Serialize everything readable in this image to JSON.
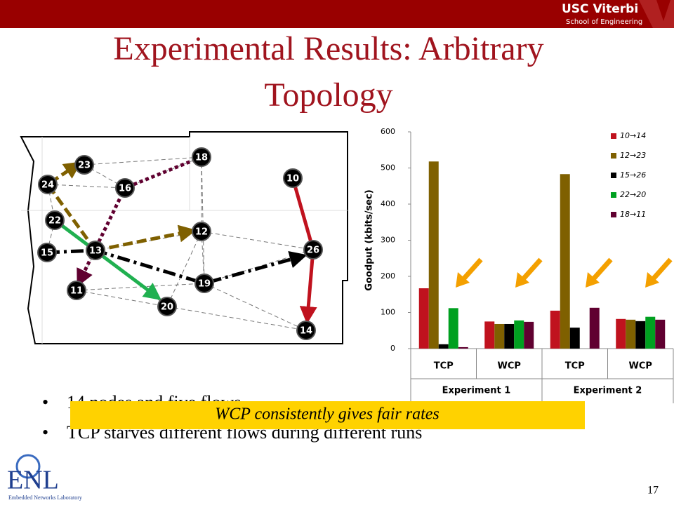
{
  "slide": {
    "title_lines": [
      "Experimental Results: Arbitrary",
      "Topology"
    ],
    "bullets": [
      "14 nodes and five flows",
      "TCP starves different flows during different runs"
    ],
    "callout": "WCP consistently gives fair rates",
    "page_number": "17",
    "header_logo": [
      "USC Viterbi",
      "School of Engineering"
    ],
    "footer_logo": [
      "ENL",
      "Embedded Networks Laboratory"
    ],
    "topology_nodes": [
      "23",
      "24",
      "16",
      "18",
      "10",
      "22",
      "12",
      "15",
      "13",
      "26",
      "11",
      "19",
      "20",
      "14"
    ]
  },
  "chart_data": {
    "type": "bar",
    "ylabel": "Goodput (kbits/sec)",
    "categories": [
      "TCP",
      "WCP",
      "TCP",
      "WCP"
    ],
    "category_groups": [
      "Experiment 1",
      "Experiment 2"
    ],
    "series": [
      {
        "name": "10→14",
        "color": "#c0121e",
        "values": [
          167,
          75,
          105,
          82
        ]
      },
      {
        "name": "12→23",
        "color": "#7f6000",
        "values": [
          518,
          68,
          483,
          80
        ]
      },
      {
        "name": "15→26",
        "color": "#000000",
        "values": [
          12,
          68,
          58,
          76
        ]
      },
      {
        "name": "22→20",
        "color": "#00a020",
        "values": [
          112,
          78,
          0,
          88
        ]
      },
      {
        "name": "18→11",
        "color": "#600030",
        "values": [
          4,
          74,
          113,
          80
        ]
      }
    ],
    "ylim": [
      0,
      600
    ],
    "yticks": [
      0,
      100,
      200,
      300,
      400,
      500,
      600
    ],
    "legend": "right"
  }
}
